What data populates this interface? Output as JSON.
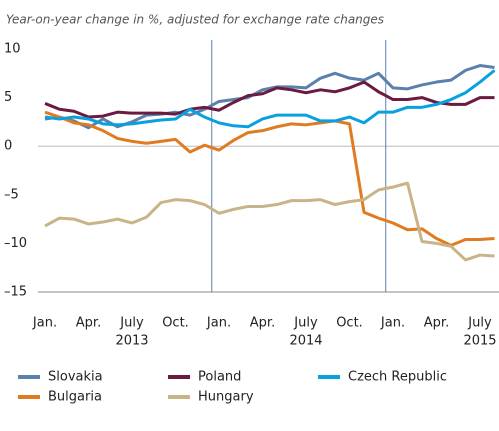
{
  "chart_data": {
    "type": "line",
    "subtitle": "Year-on-year change in %, adjusted for exchange rate changes",
    "categories": [
      "Jan.",
      null,
      null,
      "Apr.",
      null,
      null,
      "July",
      null,
      null,
      "Oct.",
      null,
      null,
      "Jan.",
      null,
      null,
      "Apr.",
      null,
      null,
      "July",
      null,
      null,
      "Oct.",
      null,
      null,
      "Jan.",
      null,
      null,
      "Apr.",
      null,
      null,
      "July",
      null
    ],
    "year_labels": [
      "2013",
      "2014",
      "2015"
    ],
    "ylim": [
      -15,
      10
    ],
    "yticks": [
      {
        "value": -15,
        "label": "–15"
      },
      {
        "value": -10,
        "label": "–10"
      },
      {
        "value": -5,
        "label": "–5"
      },
      0,
      5,
      10
    ],
    "series": [
      {
        "name": "Slovakia",
        "color": "#5b80ab",
        "values": [
          2.8,
          3.0,
          2.6,
          1.9,
          2.8,
          2.0,
          2.5,
          3.2,
          3.3,
          3.5,
          3.2,
          3.8,
          4.6,
          4.8,
          5.0,
          5.8,
          6.1,
          6.1,
          6.0,
          7.0,
          7.5,
          7.0,
          6.8,
          7.5,
          6.0,
          5.9,
          6.3,
          6.6,
          6.8,
          7.8,
          8.3,
          8.1
        ]
      },
      {
        "name": "Bulgaria",
        "color": "#e07b22",
        "values": [
          3.5,
          3.0,
          2.4,
          2.2,
          1.6,
          0.8,
          0.5,
          0.3,
          0.5,
          0.7,
          -0.6,
          0.1,
          -0.4,
          0.6,
          1.4,
          1.6,
          2.0,
          2.3,
          2.2,
          2.4,
          2.6,
          2.3,
          -6.8,
          -7.4,
          -7.9,
          -8.6,
          -8.5,
          -9.5,
          -10.2,
          -9.6,
          -9.6,
          -9.5
        ]
      },
      {
        "name": "Poland",
        "color": "#6b1a40",
        "values": [
          4.4,
          3.8,
          3.6,
          3.0,
          3.1,
          3.5,
          3.4,
          3.4,
          3.4,
          3.3,
          3.8,
          4.0,
          3.7,
          4.5,
          5.2,
          5.4,
          6.0,
          5.8,
          5.5,
          5.8,
          5.6,
          6.0,
          6.6,
          5.6,
          4.8,
          4.8,
          5.0,
          4.5,
          4.3,
          4.3,
          5.0,
          5.0
        ]
      },
      {
        "name": "Hungary",
        "color": "#c8b488",
        "values": [
          -8.2,
          -7.4,
          -7.5,
          -8.0,
          -7.8,
          -7.5,
          -7.9,
          -7.3,
          -5.8,
          -5.5,
          -5.6,
          -6.0,
          -6.9,
          -6.5,
          -6.2,
          -6.2,
          -6.0,
          -5.6,
          -5.6,
          -5.5,
          -6.0,
          -5.7,
          -5.5,
          -4.5,
          -4.2,
          -3.8,
          -9.8,
          -10.0,
          -10.3,
          -11.7,
          -11.2,
          -11.3
        ]
      },
      {
        "name": "Czech Republic",
        "color": "#0aa0e0",
        "values": [
          3.0,
          2.8,
          3.0,
          2.8,
          2.3,
          2.2,
          2.3,
          2.5,
          2.7,
          2.8,
          3.8,
          3.0,
          2.4,
          2.1,
          2.0,
          2.8,
          3.2,
          3.2,
          3.2,
          2.6,
          2.6,
          3.0,
          2.4,
          3.5,
          3.5,
          4.0,
          4.0,
          4.3,
          4.8,
          5.5,
          6.6,
          7.8
        ]
      }
    ]
  }
}
